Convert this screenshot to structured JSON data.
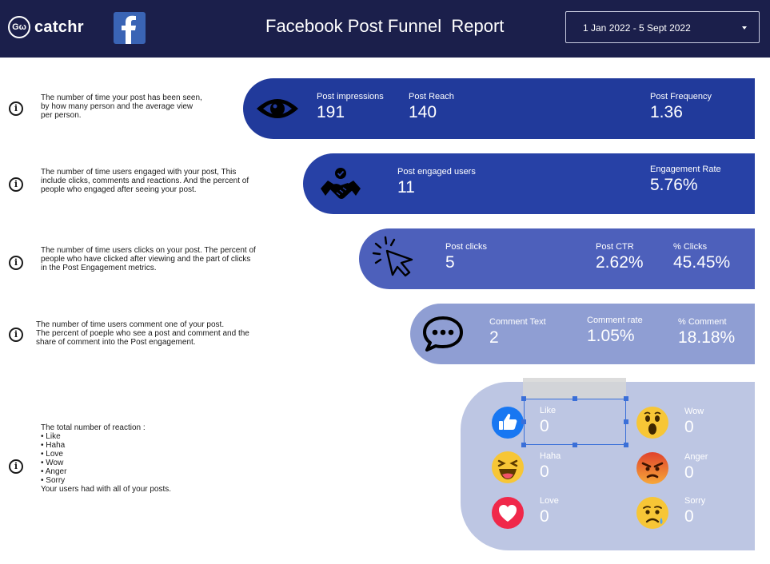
{
  "header": {
    "logo_mark": "Gω",
    "logo_text": "catchr",
    "title": "Facebook Post Funnel  Report",
    "date_range": "1 Jan 2022 - 5 Sept 2022"
  },
  "colors": {
    "header_bg": "#1b1f4b",
    "band_1": "#213a9b",
    "band_2": "#2741a6",
    "band_3": "#4d60bb",
    "band_4": "#8f9ed3",
    "band_5": "#bdc6e3"
  },
  "sections": [
    {
      "description": "The number of time your post has been seen,\nby how many person and the average view\nper person.",
      "icon": "eye-icon",
      "metrics": [
        {
          "label": "Post impressions",
          "value": "191"
        },
        {
          "label": "Post Reach",
          "value": "140"
        },
        {
          "label": "Post Frequency",
          "value": "1.36"
        }
      ]
    },
    {
      "description": "The number of time users engaged with your post, This\ninclude clicks, comments and reactions. And the percent of\npeople who engaged after seeing your post.",
      "icon": "handshake-icon",
      "metrics": [
        {
          "label": "Post engaged users",
          "value": "11"
        },
        {
          "label": "Engagement Rate",
          "value": "5.76%"
        }
      ]
    },
    {
      "description": "The number of time users clicks on your post. The percent of\npeople who have clicked after viewing and the part of clicks\nin the Post Engagement metrics.",
      "icon": "cursor-click-icon",
      "metrics": [
        {
          "label": "Post clicks",
          "value": "5"
        },
        {
          "label": "Post CTR",
          "value": "2.62%"
        },
        {
          "label": "% Clicks",
          "value": "45.45%"
        }
      ]
    },
    {
      "description": "The number of time users comment one of your post.\nThe percent of poeple who see a post and comment and the\nshare of comment into the Post engagement.",
      "icon": "comment-icon",
      "metrics": [
        {
          "label": "Comment Text",
          "value": "2"
        },
        {
          "label": "Comment rate",
          "value": "1.05%"
        },
        {
          "label": "% Comment",
          "value": "18.18%"
        }
      ]
    },
    {
      "description": "The total number of reaction :\n• Like\n• Haha\n• Love\n• Wow\n• Anger\n• Sorry\nYour users had with all of your posts.",
      "reactions": [
        {
          "label": "Like",
          "value": "0",
          "icon": "like-icon"
        },
        {
          "label": "Haha",
          "value": "0",
          "icon": "haha-icon"
        },
        {
          "label": "Love",
          "value": "0",
          "icon": "love-icon"
        },
        {
          "label": "Wow",
          "value": "0",
          "icon": "wow-icon"
        },
        {
          "label": "Anger",
          "value": "0",
          "icon": "anger-icon"
        },
        {
          "label": "Sorry",
          "value": "0",
          "icon": "sorry-icon"
        }
      ]
    }
  ]
}
